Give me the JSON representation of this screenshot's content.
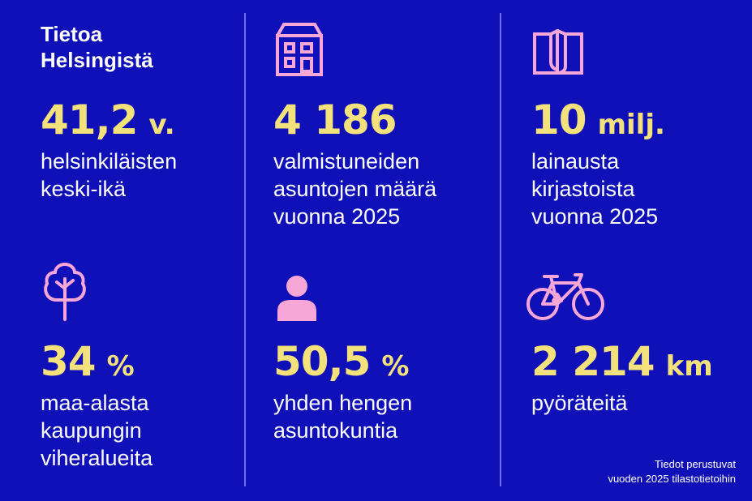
{
  "title": "Tietoa\nHelsingistä",
  "stats": [
    {
      "value": "41,2",
      "unit": "v.",
      "description": "helsinkiläisten\nkeski-ikä",
      "icon": null
    },
    {
      "value": "4 186",
      "unit": "",
      "description": "valmistuneiden\nasuntojen määrä\nvuonna 2025",
      "icon": "building-icon"
    },
    {
      "value": "10",
      "unit": "milj.",
      "description": "lainausta\nkirjastoista\nvuonna 2025",
      "icon": "book-icon"
    },
    {
      "value": "34",
      "unit": "%",
      "description": "maa-alasta\nkaupungin\nviheralueita",
      "icon": "tree-icon"
    },
    {
      "value": "50,5",
      "unit": "%",
      "description": "yhden hengen\nasuntokuntia",
      "icon": "person-icon"
    },
    {
      "value": "2 214",
      "unit": "km",
      "description": "pyöräteitä",
      "icon": "bicycle-icon"
    }
  ],
  "footnote": "Tiedot perustuvat\nvuoden 2025 tilastotietoihin",
  "colors": {
    "background": "#1010b8",
    "value_text": "#f3e17c",
    "icon": "#f6a6d7",
    "divider": "#6e6ef0",
    "text": "#ffffff"
  }
}
